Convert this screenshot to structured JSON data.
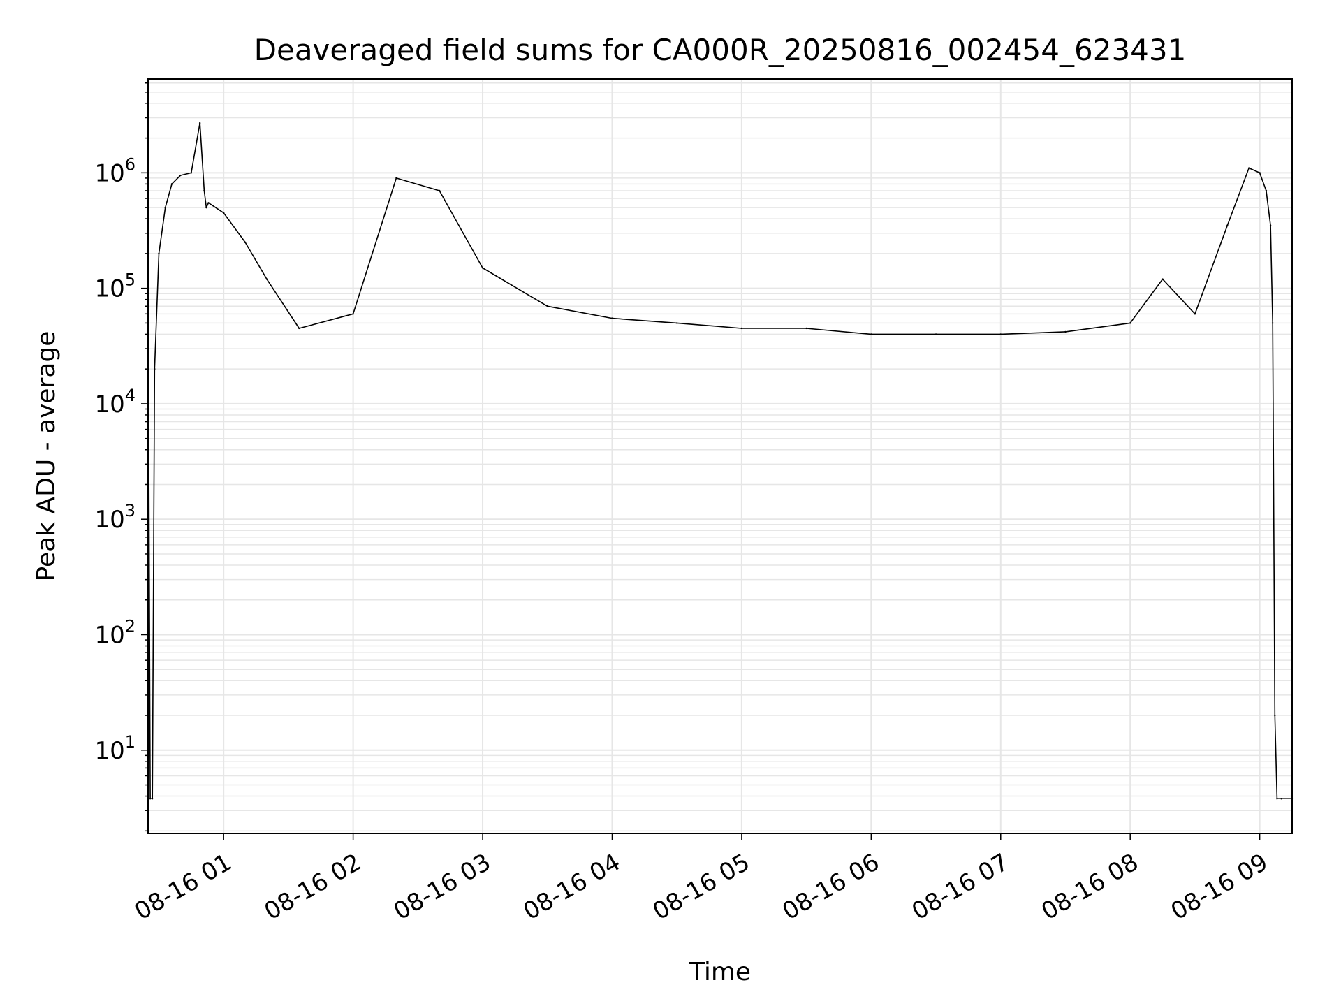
{
  "chart_data": {
    "type": "line",
    "title": "Deaveraged field sums for CA000R_20250816_002454_623431",
    "xlabel": "Time",
    "ylabel": "Peak ADU - average",
    "yscale": "log",
    "ylim": [
      1.9,
      6500000
    ],
    "xlim": [
      "2025-08-16 00:25",
      "2025-08-16 09:15"
    ],
    "grid": true,
    "grid_color": "#e6e6e6",
    "line_color": "#000000",
    "x_ticks": [
      "08-16 01",
      "08-16 02",
      "08-16 03",
      "08-16 04",
      "08-16 05",
      "08-16 06",
      "08-16 07",
      "08-16 08",
      "08-16 09"
    ],
    "y_ticks": [
      {
        "base": "10",
        "exp": "1"
      },
      {
        "base": "10",
        "exp": "2"
      },
      {
        "base": "10",
        "exp": "3"
      },
      {
        "base": "10",
        "exp": "4"
      },
      {
        "base": "10",
        "exp": "5"
      },
      {
        "base": "10",
        "exp": "6"
      }
    ],
    "series": [
      {
        "x": [
          "2025-08-16 00:25",
          "2025-08-16 00:26",
          "2025-08-16 00:27",
          "2025-08-16 00:28",
          "2025-08-16 00:30",
          "2025-08-16 00:33",
          "2025-08-16 00:36",
          "2025-08-16 00:40",
          "2025-08-16 00:45",
          "2025-08-16 00:49",
          "2025-08-16 00:51",
          "2025-08-16 00:52",
          "2025-08-16 00:53",
          "2025-08-16 01:00",
          "2025-08-16 01:10",
          "2025-08-16 01:20",
          "2025-08-16 01:35",
          "2025-08-16 02:00",
          "2025-08-16 02:20",
          "2025-08-16 02:40",
          "2025-08-16 03:00",
          "2025-08-16 03:30",
          "2025-08-16 04:00",
          "2025-08-16 04:30",
          "2025-08-16 05:00",
          "2025-08-16 05:30",
          "2025-08-16 06:00",
          "2025-08-16 06:30",
          "2025-08-16 07:00",
          "2025-08-16 07:30",
          "2025-08-16 08:00",
          "2025-08-16 08:15",
          "2025-08-16 08:30",
          "2025-08-16 08:45",
          "2025-08-16 08:55",
          "2025-08-16 09:00",
          "2025-08-16 09:03",
          "2025-08-16 09:05",
          "2025-08-16 09:06",
          "2025-08-16 09:07",
          "2025-08-16 09:08",
          "2025-08-16 09:10",
          "2025-08-16 09:15"
        ],
        "y": [
          110000,
          3.8,
          3.8,
          20000,
          200000,
          500000,
          800000,
          950000,
          1000000,
          2700000,
          700000,
          500000,
          550000,
          450000,
          250000,
          120000,
          45000,
          60000,
          900000,
          700000,
          150000,
          70000,
          55000,
          50000,
          45000,
          45000,
          40000,
          40000,
          40000,
          42000,
          50000,
          120000,
          60000,
          350000,
          1100000,
          1000000,
          700000,
          350000,
          50000,
          20,
          3.8,
          3.8,
          3.8
        ]
      }
    ]
  }
}
